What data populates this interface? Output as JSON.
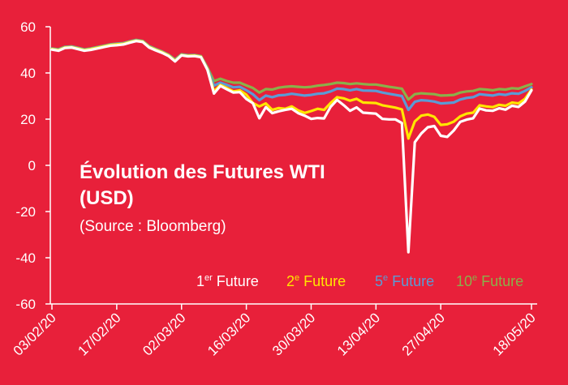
{
  "chart_data": {
    "type": "line",
    "title_line1": "Évolution des Futures WTI",
    "title_line2": "(USD)",
    "subtitle": "(Source : Bloomberg)",
    "ylim": [
      -60,
      60
    ],
    "yticks": [
      "60",
      "40",
      "20",
      "0",
      "-20",
      "-40",
      "-60"
    ],
    "xticks": [
      "03/02/20",
      "17/02/20",
      "02/03/20",
      "16/03/20",
      "30/03/20",
      "13/04/20",
      "27/04/20",
      "18/05/20"
    ],
    "x_tick_index": [
      0,
      10,
      20,
      30,
      40,
      50,
      60,
      74
    ],
    "x": [
      "03/02/20",
      "04/02/20",
      "05/02/20",
      "06/02/20",
      "07/02/20",
      "10/02/20",
      "11/02/20",
      "12/02/20",
      "13/02/20",
      "14/02/20",
      "17/02/20",
      "18/02/20",
      "19/02/20",
      "20/02/20",
      "21/02/20",
      "24/02/20",
      "25/02/20",
      "26/02/20",
      "27/02/20",
      "28/02/20",
      "02/03/20",
      "03/03/20",
      "04/03/20",
      "05/03/20",
      "06/03/20",
      "09/03/20",
      "10/03/20",
      "11/03/20",
      "12/03/20",
      "13/03/20",
      "16/03/20",
      "17/03/20",
      "18/03/20",
      "19/03/20",
      "20/03/20",
      "23/03/20",
      "24/03/20",
      "25/03/20",
      "26/03/20",
      "27/03/20",
      "30/03/20",
      "31/03/20",
      "01/04/20",
      "02/04/20",
      "03/04/20",
      "06/04/20",
      "07/04/20",
      "08/04/20",
      "09/04/20",
      "10/04/20",
      "13/04/20",
      "14/04/20",
      "15/04/20",
      "16/04/20",
      "17/04/20",
      "20/04/20",
      "21/04/20",
      "22/04/20",
      "23/04/20",
      "24/04/20",
      "27/04/20",
      "28/04/20",
      "29/04/20",
      "30/04/20",
      "01/05/20",
      "04/05/20",
      "05/05/20",
      "06/05/20",
      "07/05/20",
      "08/05/20",
      "11/05/20",
      "12/05/20",
      "13/05/20",
      "14/05/20",
      "18/05/20"
    ],
    "series": [
      {
        "name": "1er Future",
        "color": "#ffffff",
        "values": [
          50.1,
          49.6,
          50.8,
          51.0,
          50.3,
          49.6,
          50.0,
          50.6,
          51.2,
          51.8,
          52.0,
          52.3,
          53.1,
          53.8,
          53.4,
          51.0,
          49.8,
          48.7,
          47.3,
          45.0,
          47.6,
          47.2,
          47.3,
          46.8,
          41.3,
          31.1,
          34.4,
          32.9,
          31.5,
          31.7,
          28.7,
          26.9,
          20.4,
          25.2,
          22.6,
          23.4,
          24.0,
          24.5,
          22.6,
          21.5,
          20.1,
          20.5,
          20.3,
          25.3,
          28.3,
          26.1,
          23.6,
          25.1,
          22.8,
          22.6,
          22.4,
          20.1,
          19.9,
          19.9,
          18.3,
          -37.6,
          10.0,
          13.8,
          16.5,
          17.0,
          12.8,
          12.3,
          15.1,
          18.8,
          19.8,
          20.4,
          24.6,
          23.8,
          23.6,
          24.7,
          24.1,
          25.8,
          25.3,
          27.6,
          32.5
        ]
      },
      {
        "name": "2e Future",
        "color": "#ffe600",
        "values": [
          50.3,
          49.9,
          51.0,
          51.2,
          50.6,
          49.9,
          50.3,
          50.9,
          51.5,
          52.1,
          52.4,
          52.6,
          53.4,
          54.0,
          53.6,
          51.3,
          50.1,
          49.0,
          47.6,
          45.3,
          47.8,
          47.4,
          47.5,
          47.0,
          41.6,
          32.0,
          34.8,
          33.5,
          32.0,
          32.5,
          30.6,
          27.0,
          25.5,
          26.8,
          24.0,
          24.8,
          24.5,
          25.5,
          23.8,
          22.7,
          23.5,
          24.5,
          24.0,
          27.0,
          29.5,
          29.0,
          28.0,
          28.8,
          27.2,
          27.1,
          27.0,
          26.0,
          25.5,
          25.0,
          24.2,
          11.6,
          19.0,
          21.5,
          22.0,
          21.0,
          17.5,
          17.8,
          18.9,
          21.2,
          22.4,
          22.8,
          26.0,
          25.5,
          25.2,
          26.2,
          25.8,
          27.2,
          26.8,
          28.8,
          32.8
        ]
      },
      {
        "name": "5e Future",
        "color": "#5b9bd5",
        "values": [
          50.5,
          50.1,
          51.2,
          51.4,
          50.8,
          50.1,
          50.5,
          51.1,
          51.7,
          52.3,
          52.6,
          52.8,
          53.6,
          54.2,
          53.8,
          51.5,
          50.3,
          49.2,
          47.8,
          45.6,
          48.0,
          47.6,
          47.7,
          47.2,
          42.0,
          34.5,
          35.8,
          34.8,
          33.8,
          34.0,
          32.5,
          30.8,
          28.2,
          30.2,
          29.5,
          30.3,
          30.5,
          31.0,
          30.6,
          30.2,
          30.5,
          31.0,
          31.2,
          32.0,
          33.2,
          33.0,
          32.5,
          33.0,
          32.4,
          32.3,
          32.2,
          31.5,
          31.0,
          30.5,
          30.0,
          24.0,
          27.5,
          28.2,
          28.0,
          27.6,
          26.8,
          27.0,
          27.2,
          28.5,
          29.2,
          29.5,
          30.8,
          30.5,
          30.2,
          30.8,
          30.5,
          31.2,
          31.0,
          32.2,
          33.8
        ]
      },
      {
        "name": "10e Future",
        "color": "#8ab04a",
        "values": [
          50.6,
          50.2,
          51.3,
          51.5,
          50.9,
          50.2,
          50.6,
          51.2,
          51.8,
          52.4,
          52.7,
          52.9,
          53.7,
          54.3,
          53.9,
          51.6,
          50.4,
          49.3,
          47.9,
          45.8,
          48.1,
          47.7,
          47.8,
          47.3,
          42.3,
          36.5,
          37.5,
          36.5,
          35.8,
          35.8,
          34.6,
          33.5,
          31.5,
          33.0,
          32.8,
          33.6,
          34.0,
          34.2,
          34.0,
          33.8,
          34.0,
          34.5,
          34.8,
          35.2,
          35.8,
          35.6,
          35.2,
          35.5,
          35.2,
          35.0,
          35.0,
          34.5,
          34.0,
          33.6,
          33.2,
          28.5,
          30.8,
          31.2,
          31.0,
          30.8,
          30.2,
          30.3,
          30.5,
          31.5,
          32.0,
          32.2,
          33.0,
          32.8,
          32.5,
          33.0,
          32.8,
          33.4,
          33.2,
          34.2,
          35.2
        ]
      }
    ],
    "legend": [
      {
        "base": "1",
        "sup": "er",
        "rest": " Future"
      },
      {
        "base": "2",
        "sup": "e",
        "rest": " Future"
      },
      {
        "base": "5",
        "sup": "e",
        "rest": " Future"
      },
      {
        "base": "10",
        "sup": "e",
        "rest": " Future"
      }
    ]
  }
}
